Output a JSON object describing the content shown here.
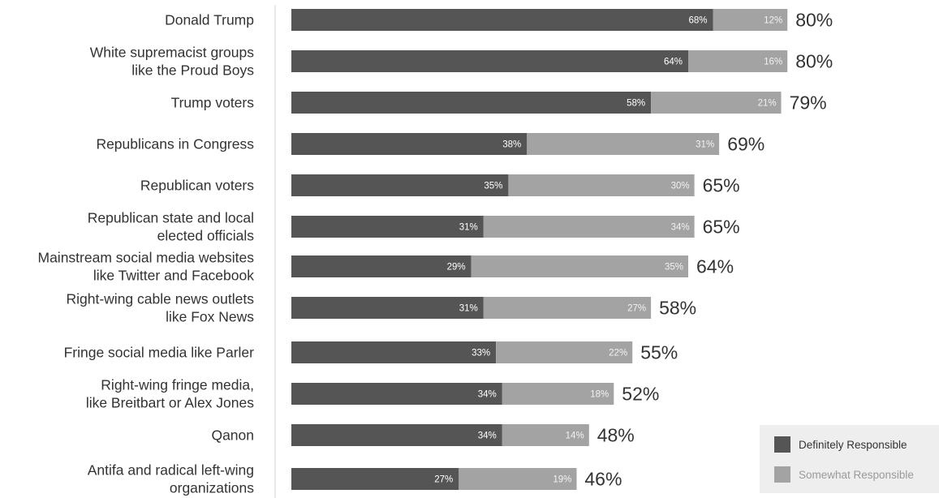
{
  "chart_data": {
    "type": "bar",
    "orientation": "horizontal",
    "stacked": true,
    "categories": [
      [
        "Donald Trump"
      ],
      [
        "White supremacist groups",
        "like the Proud Boys"
      ],
      [
        "Trump voters"
      ],
      [
        "Republicans in Congress"
      ],
      [
        "Republican voters"
      ],
      [
        "Republican state and local",
        "elected officials"
      ],
      [
        "Mainstream social media websites",
        "like Twitter and Facebook"
      ],
      [
        "Right-wing cable news outlets",
        "like Fox News"
      ],
      [
        "Fringe social media like Parler"
      ],
      [
        "Right-wing fringe media,",
        "like Breitbart or Alex Jones"
      ],
      [
        "Qanon"
      ],
      [
        "Antifa and radical left-wing",
        "organizations"
      ]
    ],
    "series": [
      {
        "name": "Definitely Responsible",
        "color": "#555555",
        "label_color": "#ffffff",
        "values": [
          68,
          64,
          58,
          38,
          35,
          31,
          29,
          31,
          33,
          34,
          34,
          27
        ]
      },
      {
        "name": "Somewhat Responsible",
        "color": "#a3a3a3",
        "label_color": "#f2f2f2",
        "values": [
          12,
          16,
          21,
          31,
          30,
          34,
          35,
          27,
          22,
          18,
          14,
          19
        ]
      }
    ],
    "totals": [
      80,
      80,
      79,
      69,
      65,
      65,
      64,
      58,
      55,
      52,
      48,
      46
    ],
    "value_suffix": "%",
    "xlim": [
      0,
      100
    ],
    "grid": false,
    "legend_position": "bottom-right"
  }
}
